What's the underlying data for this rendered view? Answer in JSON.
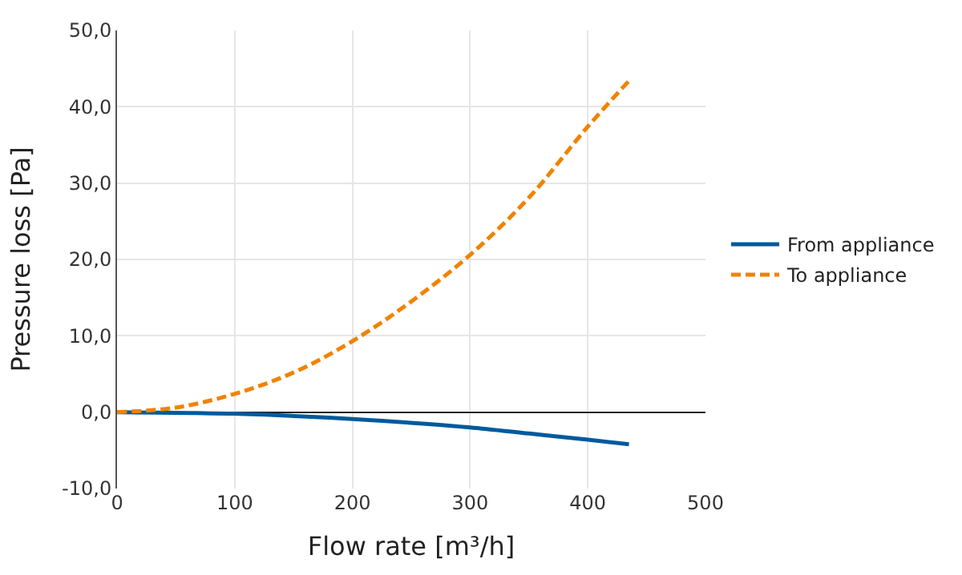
{
  "chart_data": {
    "type": "line",
    "xlabel": "Flow rate [m³/h]",
    "ylabel": "Pressure loss [Pa]",
    "xlim": [
      0,
      500
    ],
    "xticks": [
      0,
      100,
      200,
      300,
      400,
      500
    ],
    "ylim": [
      -10,
      50
    ],
    "yticks": [
      {
        "value": -10,
        "label": "-10,0"
      },
      {
        "value": 0,
        "label": "0,0"
      },
      {
        "value": 10,
        "label": "10,0"
      },
      {
        "value": 20,
        "label": "20,0"
      },
      {
        "value": 30,
        "label": "30,0"
      },
      {
        "value": 40,
        "label": "40,0"
      },
      {
        "value": 50,
        "label": "50,0"
      }
    ],
    "grid": true,
    "legend": "right",
    "marker": "none",
    "x": [
      0,
      50,
      100,
      150,
      200,
      250,
      300,
      350,
      400,
      435
    ],
    "series": [
      {
        "name": "From appliance",
        "color": "#005a9c",
        "line_style": "solid",
        "values": [
          0,
          -0.1,
          -0.2,
          -0.5,
          -0.9,
          -1.4,
          -2.0,
          -2.8,
          -3.6,
          -4.2
        ]
      },
      {
        "name": "To appliance",
        "color": "#f08300",
        "line_style": "dashed",
        "values": [
          0,
          0.6,
          2.4,
          5.2,
          9.3,
          14.5,
          20.6,
          28.1,
          37.4,
          43.4
        ]
      }
    ]
  }
}
